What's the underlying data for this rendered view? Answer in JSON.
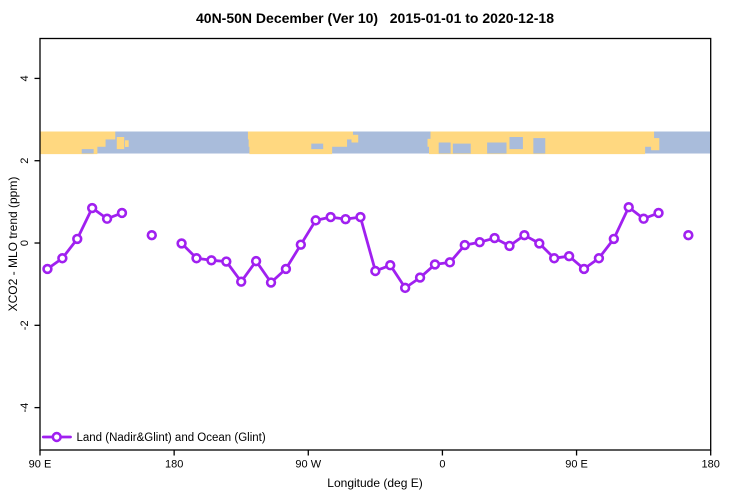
{
  "chart_data": {
    "type": "line",
    "title": "40N-50N December (Ver 10)   2015-01-01 to 2020-12-18",
    "xlabel": "Longitude (deg E)",
    "ylabel": "XCO2 - MLO trend (ppm)",
    "xlim": [
      90,
      540
    ],
    "ylim": [
      -5.03,
      4.97
    ],
    "grid": false,
    "x_ticks": [
      {
        "deg": 90,
        "label": "90 E"
      },
      {
        "deg": 180,
        "label": "180"
      },
      {
        "deg": 270,
        "label": "90 W"
      },
      {
        "deg": 360,
        "label": "0"
      },
      {
        "deg": 450,
        "label": "90 E"
      },
      {
        "deg": 540,
        "label": "180"
      }
    ],
    "y_ticks": [
      {
        "v": 4,
        "label": "4"
      },
      {
        "v": 2,
        "label": "2"
      },
      {
        "v": 0,
        "label": "0"
      },
      {
        "v": -2,
        "label": "-2"
      },
      {
        "v": -4,
        "label": "-4"
      }
    ],
    "series": [
      {
        "name": "Land (Nadir&Glint) and Ocean (Glint)",
        "color": "#A020F0",
        "marker": "open-circle",
        "gap_threshold_deg": 12,
        "points": [
          [
            95,
            -0.63
          ],
          [
            105,
            -0.37
          ],
          [
            115,
            0.1
          ],
          [
            125,
            0.85
          ],
          [
            135,
            0.59
          ],
          [
            145,
            0.73
          ],
          [
            165,
            0.19
          ],
          [
            185,
            -0.01
          ],
          [
            195,
            -0.37
          ],
          [
            205,
            -0.42
          ],
          [
            215,
            -0.45
          ],
          [
            225,
            -0.94
          ],
          [
            235,
            -0.44
          ],
          [
            245,
            -0.96
          ],
          [
            255,
            -0.63
          ],
          [
            265,
            -0.04
          ],
          [
            275,
            0.55
          ],
          [
            285,
            0.63
          ],
          [
            295,
            0.58
          ],
          [
            305,
            0.63
          ],
          [
            315,
            -0.68
          ],
          [
            325,
            -0.54
          ],
          [
            335,
            -1.09
          ],
          [
            345,
            -0.84
          ],
          [
            355,
            -0.52
          ],
          [
            365,
            -0.47
          ],
          [
            375,
            -0.05
          ],
          [
            385,
            0.02
          ],
          [
            395,
            0.12
          ],
          [
            405,
            -0.07
          ],
          [
            415,
            0.19
          ],
          [
            425,
            -0.01
          ],
          [
            435,
            -0.37
          ],
          [
            445,
            -0.32
          ],
          [
            455,
            -0.63
          ],
          [
            465,
            -0.37
          ],
          [
            475,
            0.1
          ],
          [
            485,
            0.87
          ],
          [
            495,
            0.59
          ],
          [
            505,
            0.73
          ],
          [
            525,
            0.19
          ]
        ]
      }
    ],
    "legend": {
      "label": "Land (Nadir&Glint) and Ocean (Glint)",
      "position": "bottom-left",
      "color": "#A020F0"
    },
    "map_band": {
      "comment": "world coastline strip for 40N-50N drawn across top of plot",
      "y_range": [
        2.175,
        2.71
      ],
      "ocean_color": "#A9BCDB",
      "land_color": "#FFD880",
      "land_segments": [
        {
          "name": "asia-east",
          "rows": [
            [
              90,
              140.5
            ],
            [
              90,
              134
            ],
            [
              90,
              128.5
            ]
          ]
        },
        {
          "name": "north-america",
          "rows": [
            [
              229.5,
              300
            ],
            [
              230,
              296
            ],
            [
              230.5,
              286
            ]
          ]
        },
        {
          "name": "europe-asia",
          "rows": [
            [
              352,
              502
            ],
            [
              350,
              501
            ],
            [
              351,
              496
            ]
          ]
        }
      ],
      "ocean_patches": [
        [
          118,
          126,
          0.8,
          1.0
        ],
        [
          272,
          280,
          0.55,
          0.8
        ],
        [
          357.5,
          365.5,
          0.5,
          1.0
        ],
        [
          367,
          379,
          0.55,
          1.0
        ],
        [
          390,
          403,
          0.5,
          1.0
        ],
        [
          405,
          414,
          0.25,
          0.8
        ],
        [
          421,
          429,
          0.3,
          1.0
        ]
      ],
      "islands": [
        [
          141.5,
          146.5,
          0.25,
          0.8
        ],
        [
          147,
          149.5,
          0.4,
          0.7
        ],
        [
          299,
          303.5,
          0.15,
          0.5
        ],
        [
          500,
          505.5,
          0.3,
          0.85
        ]
      ]
    },
    "axis_color": "#000000",
    "background_color": "#ffffff"
  }
}
